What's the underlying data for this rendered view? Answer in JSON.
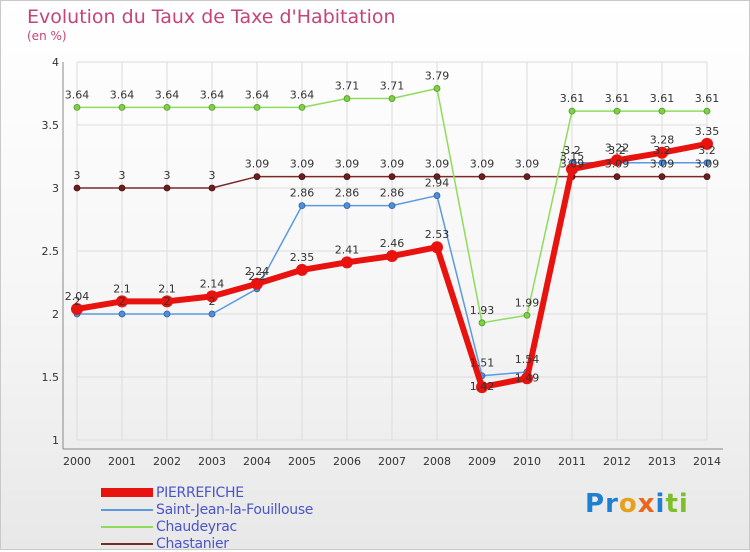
{
  "title": "Evolution du Taux de Taxe d'Habitation",
  "unit_label": "(en %)",
  "logo": {
    "letters": [
      "P",
      "r",
      "o",
      "x",
      "i",
      "t",
      "i"
    ],
    "colors": [
      "#1f7fd1",
      "#1f7fd1",
      "#e8a01a",
      "#e8671a",
      "#1f7fd1",
      "#7cbf2a",
      "#7cbf2a"
    ]
  },
  "chart_data": {
    "type": "line",
    "title": "Evolution du Taux de Taxe d'Habitation",
    "ylabel": "(en %)",
    "xlabel": "",
    "x": [
      "2000",
      "2001",
      "2002",
      "2003",
      "2004",
      "2005",
      "2006",
      "2007",
      "2008",
      "2009",
      "2010",
      "2011",
      "2012",
      "2013",
      "2014"
    ],
    "ylim": [
      1,
      4
    ],
    "yticks": [
      "1",
      "1.5",
      "2",
      "2.5",
      "3",
      "3.5",
      "4"
    ],
    "grid": true,
    "legend_position": "bottom-left",
    "series": [
      {
        "name": "PIERREFICHE",
        "color": "#e8120f",
        "values": [
          2.04,
          2.1,
          2.1,
          2.14,
          2.24,
          2.35,
          2.41,
          2.46,
          2.53,
          1.42,
          1.49,
          3.15,
          3.22,
          3.28,
          3.35
        ],
        "labels": [
          "2.04",
          "2.1",
          "2.1",
          "2.14",
          "2.24",
          "2.35",
          "2.41",
          "2.46",
          "2.53",
          "1.42",
          "1.49",
          "3.15",
          "3.22",
          "3.28",
          "3.35"
        ]
      },
      {
        "name": "Saint-Jean-la-Fouillouse",
        "color": "#4f8fd8",
        "values": [
          2,
          2,
          2,
          2,
          2.2,
          2.86,
          2.86,
          2.86,
          2.94,
          1.51,
          1.54,
          3.2,
          3.2,
          3.2,
          3.2
        ],
        "labels": [
          "2",
          "2",
          "2",
          "2",
          "2.2",
          "2.86",
          "2.86",
          "2.86",
          "2.94",
          "1.51",
          "1.54",
          "3.2",
          "3.2",
          "3.2",
          "3.2"
        ]
      },
      {
        "name": "Chaudeyrac",
        "color": "#7fd048",
        "values": [
          3.64,
          3.64,
          3.64,
          3.64,
          3.64,
          3.64,
          3.71,
          3.71,
          3.79,
          1.93,
          1.99,
          3.61,
          3.61,
          3.61,
          3.61
        ],
        "labels": [
          "3.64",
          "3.64",
          "3.64",
          "3.64",
          "3.64",
          "3.64",
          "3.71",
          "3.71",
          "3.79",
          "1.93",
          "1.99",
          "3.61",
          "3.61",
          "3.61",
          "3.61"
        ]
      },
      {
        "name": "Chastanier",
        "color": "#7a2a2a",
        "values": [
          3,
          3,
          3,
          3,
          3.09,
          3.09,
          3.09,
          3.09,
          3.09,
          3.09,
          3.09,
          3.09,
          3.09,
          3.09,
          3.09
        ],
        "labels": [
          "3",
          "3",
          "3",
          "3",
          "3.09",
          "3.09",
          "3.09",
          "3.09",
          "3.09",
          "3.09",
          "3.09",
          "3.09",
          "3.09",
          "3.09",
          "3.09"
        ]
      }
    ]
  }
}
